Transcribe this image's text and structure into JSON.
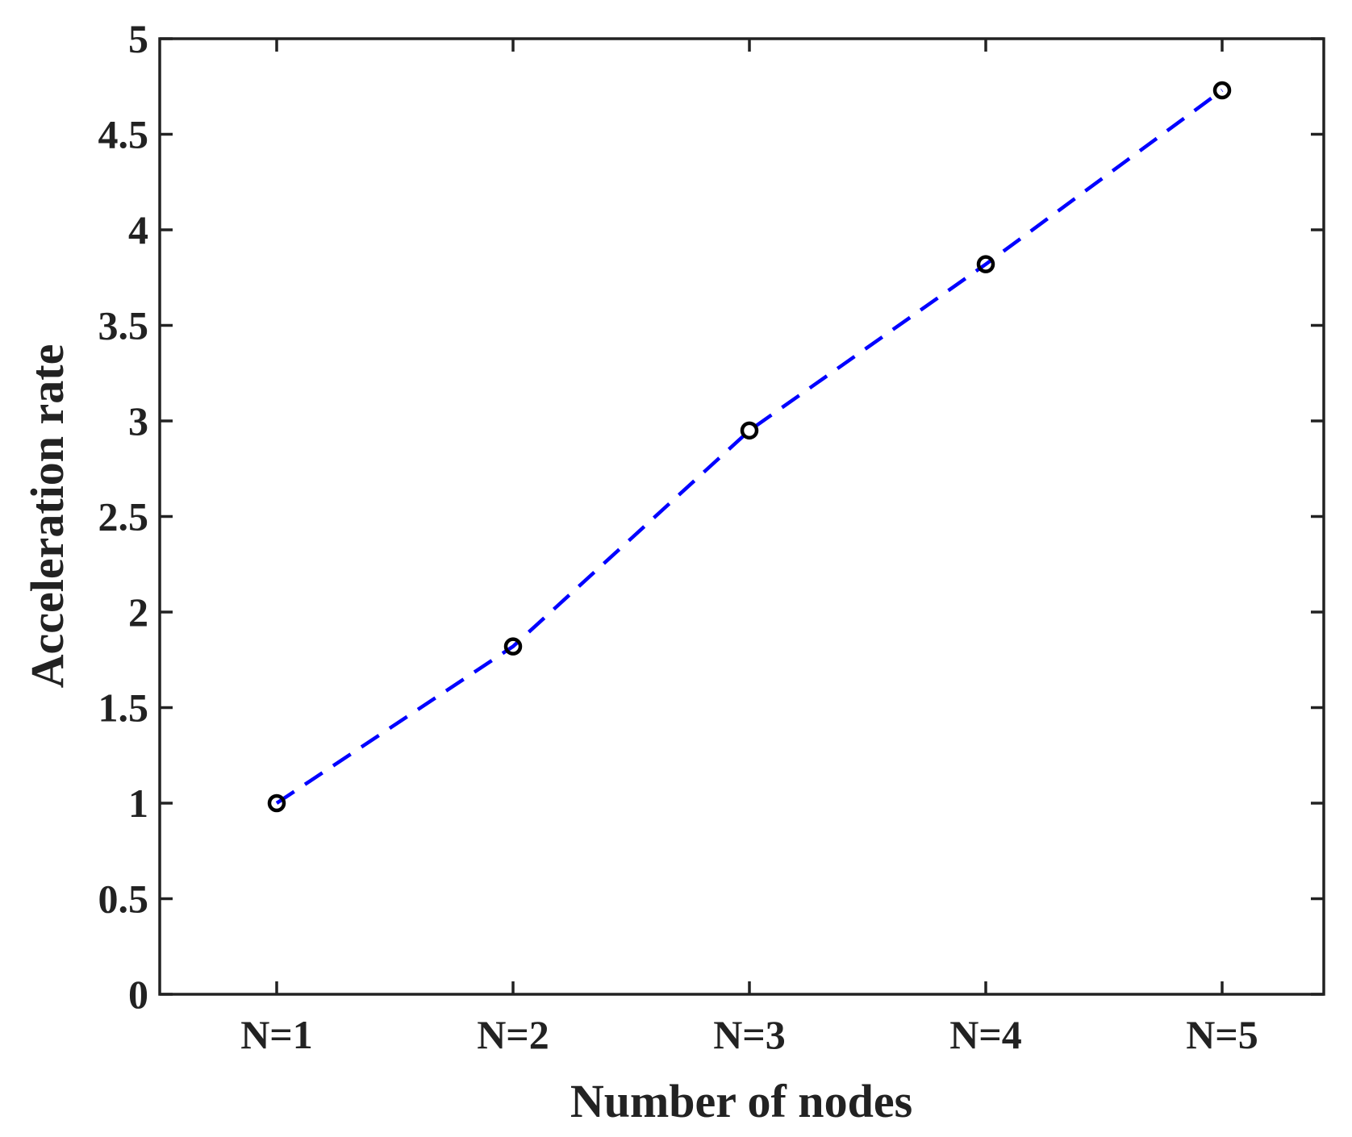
{
  "chart_data": {
    "type": "line",
    "title": "",
    "xlabel": "Number of nodes",
    "ylabel": "Acceleration rate",
    "categories": [
      "N=1",
      "N=2",
      "N=3",
      "N=4",
      "N=5"
    ],
    "yticks": [
      "0",
      "0.5",
      "1",
      "1.5",
      "2",
      "2.5",
      "3",
      "3.5",
      "4",
      "4.5",
      "5"
    ],
    "ylim": [
      0,
      5
    ],
    "grid": false,
    "legend": "none",
    "series": [
      {
        "values": [
          1.0,
          1.82,
          2.95,
          3.82,
          4.73
        ],
        "line_color": "#0000ff",
        "line_style": "dashed",
        "marker": "circle",
        "marker_color": "#000000"
      }
    ]
  }
}
